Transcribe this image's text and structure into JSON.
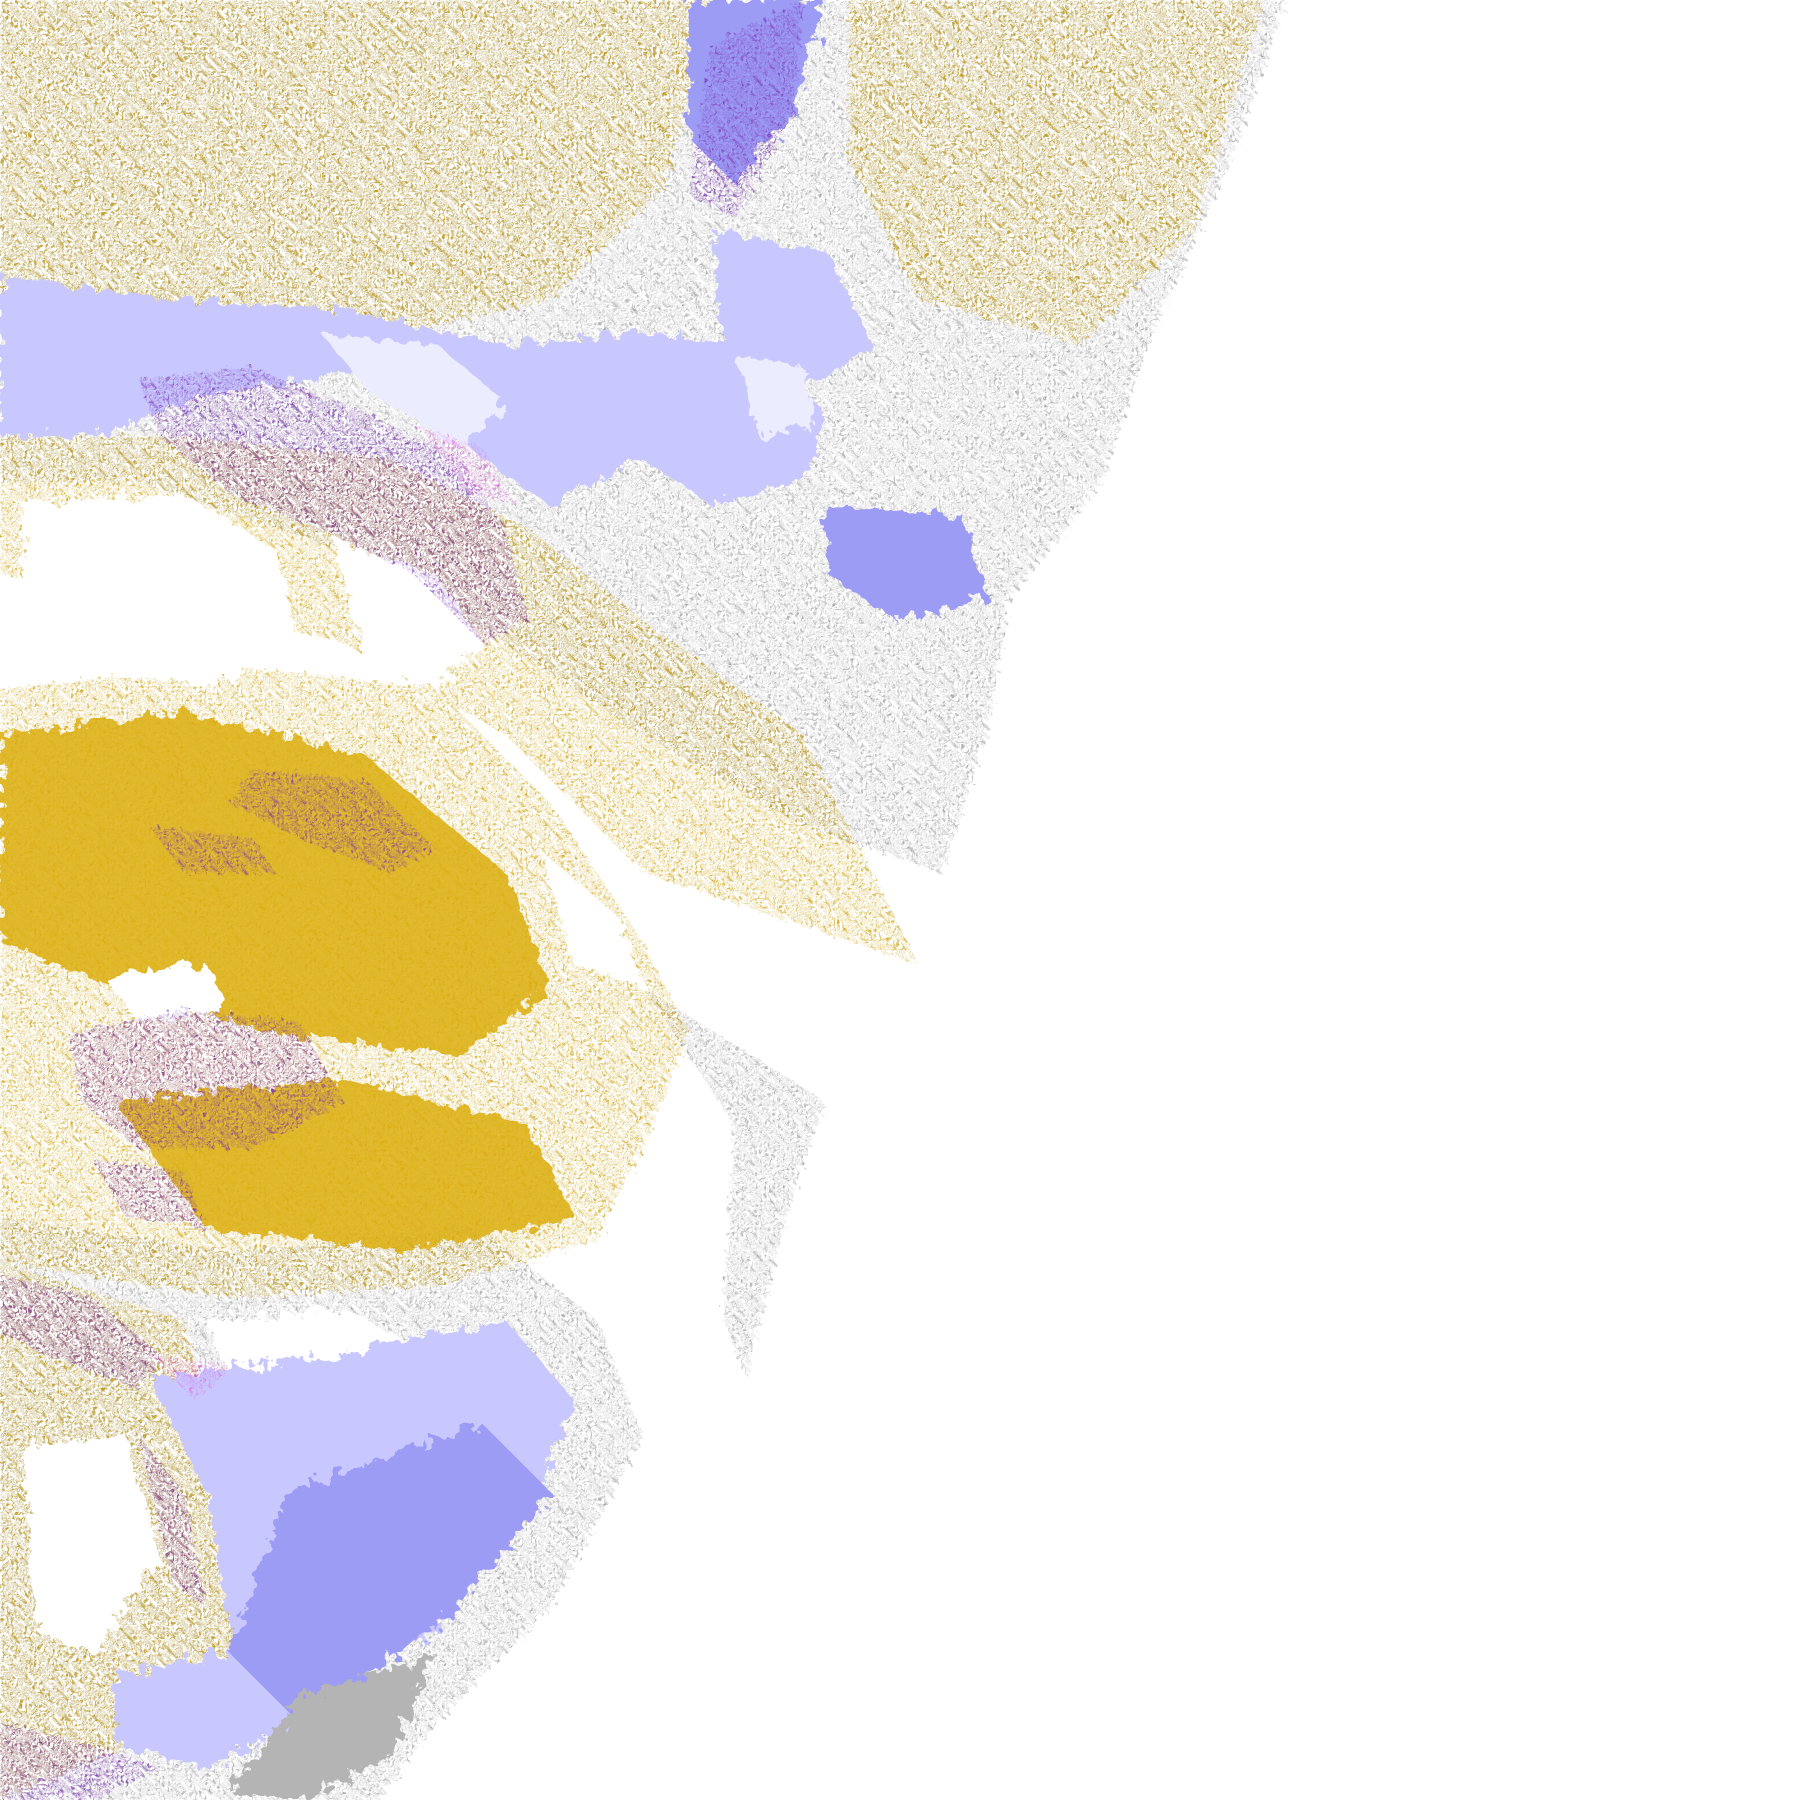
{
  "map": {
    "type": "weather-data-overlay-tile",
    "background": "#ffffff",
    "palette": {
      "gold": "#c99d00",
      "gold_light": "#dcae10",
      "purple": "#7b35b5",
      "magenta": "#e05ce0",
      "gray": "#9a9a9a",
      "gray_light": "#b4b4b4",
      "lavender": "#c8c8ff",
      "periwinkle": "#9c9cf5",
      "pale": "#ececff"
    }
  }
}
